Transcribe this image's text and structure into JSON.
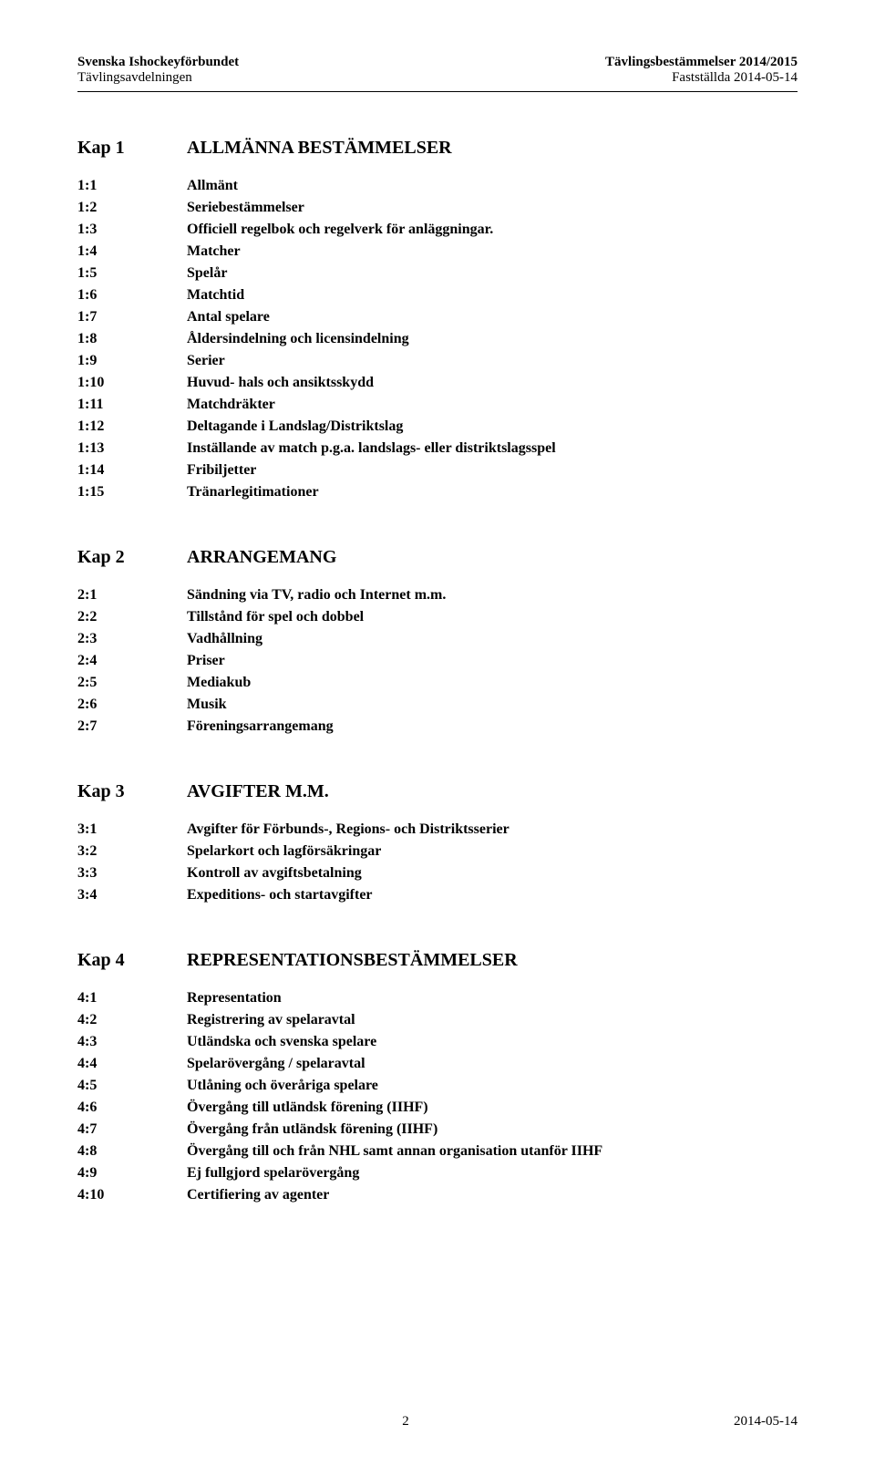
{
  "header": {
    "left_bold": "Svenska Ishockeyförbundet",
    "left_sub": "Tävlingsavdelningen",
    "right_bold": "Tävlingsbestämmelser 2014/2015",
    "right_sub": "Fastställda 2014-05-14"
  },
  "chapters": [
    {
      "num": "Kap 1",
      "title": "ALLMÄNNA BESTÄMMELSER",
      "items": [
        {
          "n": "1:1",
          "t": "Allmänt"
        },
        {
          "n": "1:2",
          "t": "Seriebestämmelser"
        },
        {
          "n": "1:3",
          "t": "Officiell regelbok och regelverk för anläggningar."
        },
        {
          "n": "1:4",
          "t": "Matcher"
        },
        {
          "n": "1:5",
          "t": "Spelår"
        },
        {
          "n": "1:6",
          "t": "Matchtid"
        },
        {
          "n": "1:7",
          "t": "Antal spelare"
        },
        {
          "n": "1:8",
          "t": "Åldersindelning och licensindelning"
        },
        {
          "n": "1:9",
          "t": "Serier"
        },
        {
          "n": "1:10",
          "t": "Huvud- hals och ansiktsskydd"
        },
        {
          "n": "1:11",
          "t": "Matchdräkter"
        },
        {
          "n": "1:12",
          "t": "Deltagande i Landslag/Distriktslag"
        },
        {
          "n": "1:13",
          "t": "Inställande av match p.g.a. landslags- eller distriktslagsspel"
        },
        {
          "n": "1:14",
          "t": "Fribiljetter"
        },
        {
          "n": "1:15",
          "t": "Tränarlegitimationer"
        }
      ]
    },
    {
      "num": "Kap 2",
      "title": "ARRANGEMANG",
      "items": [
        {
          "n": "2:1",
          "t": "Sändning via TV, radio och Internet m.m."
        },
        {
          "n": "2:2",
          "t": "Tillstånd för spel och dobbel"
        },
        {
          "n": "2:3",
          "t": "Vadhållning"
        },
        {
          "n": "2:4",
          "t": "Priser"
        },
        {
          "n": "2:5",
          "t": "Mediakub"
        },
        {
          "n": "2:6",
          "t": "Musik"
        },
        {
          "n": "2:7",
          "t": "Föreningsarrangemang"
        }
      ]
    },
    {
      "num": "Kap 3",
      "title": "AVGIFTER M.M.",
      "items": [
        {
          "n": "3:1",
          "t": "Avgifter för Förbunds-, Regions- och Distriktsserier"
        },
        {
          "n": "3:2",
          "t": "Spelarkort och lagförsäkringar"
        },
        {
          "n": "3:3",
          "t": "Kontroll av avgiftsbetalning"
        },
        {
          "n": "3:4",
          "t": "Expeditions- och startavgifter"
        }
      ]
    },
    {
      "num": "Kap 4",
      "title": "REPRESENTATIONSBESTÄMMELSER",
      "items": [
        {
          "n": "4:1",
          "t": "Representation"
        },
        {
          "n": "4:2",
          "t": "Registrering av spelaravtal"
        },
        {
          "n": "4:3",
          "t": "Utländska och svenska spelare"
        },
        {
          "n": "4:4",
          "t": "Spelarövergång / spelaravtal"
        },
        {
          "n": "4:5",
          "t": "Utlåning och överåriga spelare"
        },
        {
          "n": "4:6",
          "t": "Övergång till utländsk förening (IIHF)"
        },
        {
          "n": "4:7",
          "t": "Övergång från utländsk förening (IIHF)"
        },
        {
          "n": "4:8",
          "t": "Övergång till och från NHL samt annan organisation utanför IIHF"
        },
        {
          "n": "4:9",
          "t": "Ej fullgjord spelarövergång"
        },
        {
          "n": "4:10",
          "t": "Certifiering av agenter"
        }
      ]
    }
  ],
  "footer": {
    "page": "2",
    "date": "2014-05-14"
  }
}
